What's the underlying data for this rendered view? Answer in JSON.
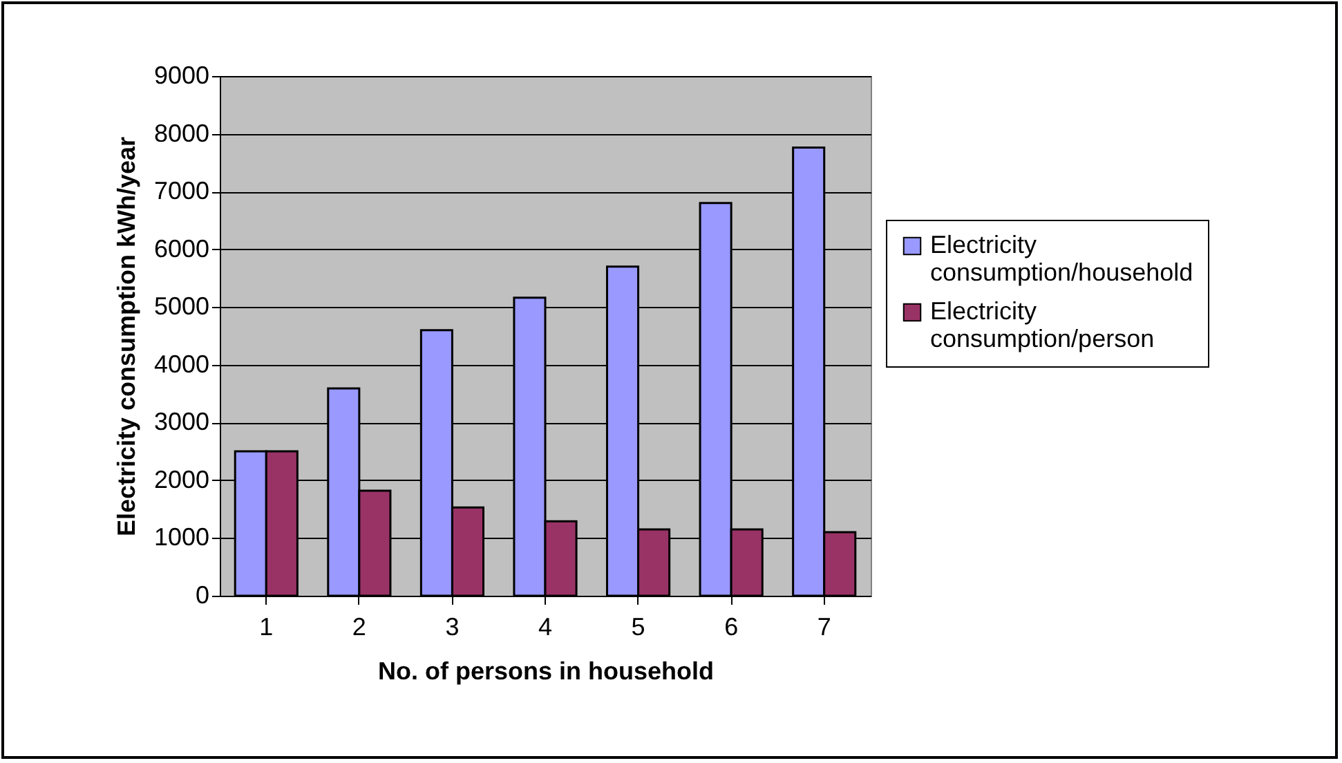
{
  "chart_data": {
    "type": "bar",
    "xlabel": "No. of persons in household",
    "ylabel": "Electricity consumption kWh/year",
    "categories": [
      "1",
      "2",
      "3",
      "4",
      "5",
      "6",
      "7"
    ],
    "series": [
      {
        "name": "Electricity consumption/household",
        "color": "#9999ff",
        "values": [
          2500,
          3590,
          4600,
          5160,
          5700,
          6800,
          7760
        ]
      },
      {
        "name": "Electricity consumption/person",
        "color": "#993366",
        "values": [
          2500,
          1820,
          1530,
          1290,
          1150,
          1150,
          1100
        ]
      }
    ],
    "ylim": [
      0,
      9000
    ],
    "yticks": [
      0,
      1000,
      2000,
      3000,
      4000,
      5000,
      6000,
      7000,
      8000,
      9000
    ],
    "grid": "y",
    "legend": "right"
  }
}
